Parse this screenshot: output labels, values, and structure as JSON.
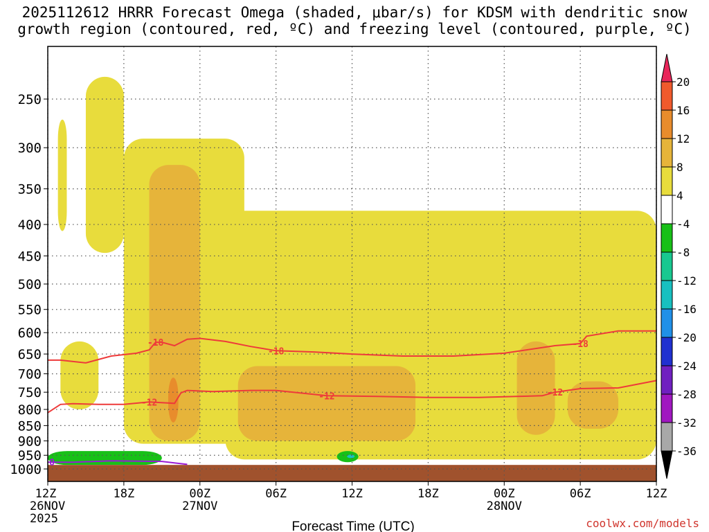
{
  "title": {
    "line1": "2025112612 HRRR Forecast Omega (shaded, μbar/s) for KDSM with dendritic snow",
    "line2": "growth region (contoured, red, ºC) and freezing level (contoured, purple, ºC)"
  },
  "credit": "coolwx.com/models",
  "chart_data": {
    "type": "contour",
    "title": "2025112612 HRRR Forecast Omega (shaded, μbar/s) for KDSM with dendritic snow growth region (contoured, red, ºC) and freezing level (contoured, purple, ºC)",
    "xlabel": "Forecast Time (UTC)",
    "ylabel": "",
    "x_range_hours": [
      0,
      48
    ],
    "y_range_mb": [
      1050,
      200
    ],
    "x_ticks": [
      {
        "hour": 0,
        "lines": [
          "12Z",
          "26NOV",
          "2025"
        ]
      },
      {
        "hour": 6,
        "lines": [
          "18Z"
        ]
      },
      {
        "hour": 12,
        "lines": [
          "00Z",
          "27NOV"
        ]
      },
      {
        "hour": 18,
        "lines": [
          "06Z"
        ]
      },
      {
        "hour": 24,
        "lines": [
          "12Z"
        ]
      },
      {
        "hour": 30,
        "lines": [
          "18Z"
        ]
      },
      {
        "hour": 36,
        "lines": [
          "00Z",
          "28NOV"
        ]
      },
      {
        "hour": 42,
        "lines": [
          "06Z"
        ]
      },
      {
        "hour": 48,
        "lines": [
          "12Z"
        ]
      }
    ],
    "y_ticks": [
      250,
      300,
      350,
      400,
      450,
      500,
      550,
      600,
      650,
      700,
      750,
      800,
      850,
      900,
      950,
      1000
    ],
    "colorbar": {
      "levels": [
        20,
        16,
        12,
        8,
        4,
        -4,
        -8,
        -12,
        -16,
        -20,
        -24,
        -28,
        -32,
        -36
      ],
      "colors": [
        "#e8265a",
        "#f05a2c",
        "#e88c2c",
        "#e6b43a",
        "#e8dc3c",
        "#ffffff",
        "#18c018",
        "#18c890",
        "#18c0c0",
        "#2090e8",
        "#2030d0",
        "#7020c0",
        "#a018c0",
        "#a8a8a8"
      ]
    },
    "series": [
      {
        "name": "-12 C isotherm",
        "color": "#ee3a3a",
        "label": "-12",
        "points": [
          [
            0,
            810
          ],
          [
            1,
            785
          ],
          [
            2,
            783
          ],
          [
            4,
            785
          ],
          [
            6,
            785
          ],
          [
            8,
            778
          ],
          [
            10,
            782
          ],
          [
            10.5,
            752
          ],
          [
            11,
            745
          ],
          [
            13,
            748
          ],
          [
            16,
            745
          ],
          [
            18,
            745
          ],
          [
            22,
            760
          ],
          [
            26,
            762
          ],
          [
            30,
            765
          ],
          [
            34,
            765
          ],
          [
            37,
            762
          ],
          [
            39,
            760
          ],
          [
            40,
            750
          ],
          [
            42,
            740
          ],
          [
            45,
            738
          ],
          [
            48,
            718
          ]
        ]
      },
      {
        "name": "-18 C isotherm",
        "color": "#ee3a3a",
        "label": "-18",
        "points": [
          [
            0,
            665
          ],
          [
            1,
            665
          ],
          [
            3,
            672
          ],
          [
            5,
            655
          ],
          [
            7,
            648
          ],
          [
            8,
            640
          ],
          [
            8.5,
            622
          ],
          [
            9,
            622
          ],
          [
            10,
            630
          ],
          [
            11,
            615
          ],
          [
            12,
            613
          ],
          [
            14,
            620
          ],
          [
            16,
            632
          ],
          [
            18,
            642
          ],
          [
            21,
            645
          ],
          [
            24,
            650
          ],
          [
            28,
            655
          ],
          [
            32,
            655
          ],
          [
            36,
            648
          ],
          [
            40,
            630
          ],
          [
            42,
            625
          ],
          [
            42.5,
            608
          ],
          [
            45,
            596
          ],
          [
            48,
            596
          ]
        ]
      },
      {
        "name": "0 C freezing level",
        "color": "#9a1ad6",
        "label": "0",
        "points": [
          [
            0,
            975
          ],
          [
            2,
            975
          ],
          [
            5,
            970
          ],
          [
            9,
            972
          ],
          [
            11,
            983
          ]
        ]
      }
    ],
    "shaded_regions": [
      {
        "level": "4 to 8",
        "color": "#e8dc3c",
        "x_span_hours": [
          0.8,
          1.5
        ],
        "p_span_mb": [
          410,
          270
        ]
      },
      {
        "level": "4 to 8",
        "color": "#e8dc3c",
        "x_span_hours": [
          3,
          6
        ],
        "p_span_mb": [
          445,
          230
        ]
      },
      {
        "level": "4 to 8",
        "color": "#e8dc3c",
        "x_span_hours": [
          1,
          4
        ],
        "p_span_mb": [
          800,
          620
        ]
      },
      {
        "level": "4 to 8",
        "color": "#e8dc3c",
        "x_span_hours": [
          6,
          15.5
        ],
        "p_span_mb": [
          910,
          290
        ]
      },
      {
        "level": "4 to 8",
        "color": "#e8dc3c",
        "x_span_hours": [
          14,
          48
        ],
        "p_span_mb": [
          965,
          380
        ]
      },
      {
        "level": "8 to 12",
        "color": "#e6b43a",
        "x_span_hours": [
          8,
          12
        ],
        "p_span_mb": [
          900,
          320
        ]
      },
      {
        "level": "8 to 12",
        "color": "#e6b43a",
        "x_span_hours": [
          15,
          29
        ],
        "p_span_mb": [
          900,
          680
        ]
      },
      {
        "level": "8 to 12",
        "color": "#e6b43a",
        "x_span_hours": [
          37,
          40
        ],
        "p_span_mb": [
          880,
          620
        ]
      },
      {
        "level": "8 to 12",
        "color": "#e6b43a",
        "x_span_hours": [
          41,
          45
        ],
        "p_span_mb": [
          860,
          720
        ]
      },
      {
        "level": "12 to 16",
        "color": "#e88c2c",
        "x_span_hours": [
          9.5,
          10.3
        ],
        "p_span_mb": [
          840,
          710
        ]
      },
      {
        "level": "-4 to -8",
        "color": "#18c018",
        "x_span_hours": [
          0,
          9
        ],
        "p_span_mb": [
          985,
          935
        ]
      },
      {
        "level": "-4 to -8",
        "color": "#18c018",
        "x_span_hours": [
          22.8,
          24.5
        ],
        "p_span_mb": [
          975,
          935
        ]
      },
      {
        "level": "-12 to -16",
        "color": "#18c0c0",
        "x_span_hours": [
          23.6,
          24.2
        ],
        "p_span_mb": [
          960,
          948
        ]
      }
    ],
    "terrain": {
      "color": "#a0522d",
      "top_mb": 985
    }
  }
}
